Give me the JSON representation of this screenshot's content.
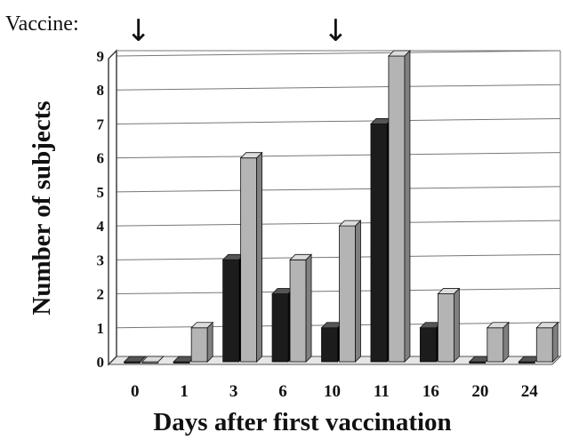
{
  "chart_data": {
    "type": "bar",
    "style": "3d-clustered",
    "categories": [
      "0",
      "1",
      "3",
      "6",
      "10",
      "11",
      "16",
      "20",
      "24"
    ],
    "series": [
      {
        "values": [
          0,
          0,
          3,
          2,
          1,
          7,
          1,
          0,
          0
        ],
        "color": "#1c1c1c"
      },
      {
        "values": [
          0,
          1,
          6,
          3,
          4,
          9,
          2,
          1,
          1
        ],
        "color": "#b4b4b4"
      }
    ],
    "title": "",
    "xlabel": "Days after first vaccination",
    "ylabel": "Number of subjects",
    "ylim": [
      0,
      9
    ],
    "yticks": [
      "0",
      "1",
      "2",
      "3",
      "4",
      "5",
      "6",
      "7",
      "8",
      "9"
    ],
    "grid": true,
    "annotations": {
      "label": "Vaccine:",
      "arrow_symbol": "↓",
      "arrow_days": [
        "0",
        "10"
      ]
    }
  }
}
